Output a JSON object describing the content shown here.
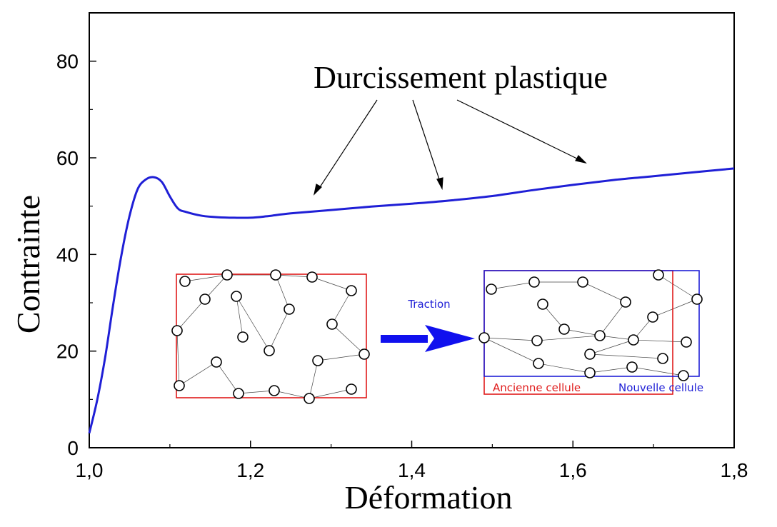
{
  "chart_data": {
    "type": "line",
    "xlabel": "Déformation",
    "ylabel": "Contrainte",
    "xlim": [
      1.0,
      1.8
    ],
    "ylim": [
      0,
      90
    ],
    "x_ticks": [
      "1,0",
      "1,2",
      "1,4",
      "1,6",
      "1,8"
    ],
    "x_tick_values": [
      1.0,
      1.2,
      1.4,
      1.6,
      1.8
    ],
    "y_ticks": [
      "0",
      "20",
      "40",
      "60",
      "80"
    ],
    "y_tick_values": [
      0,
      20,
      40,
      60,
      80
    ],
    "grid": false,
    "series": [
      {
        "color": "#1f1fd6",
        "x": [
          1.0,
          1.01,
          1.02,
          1.03,
          1.04,
          1.05,
          1.06,
          1.07,
          1.08,
          1.09,
          1.1,
          1.11,
          1.12,
          1.14,
          1.16,
          1.18,
          1.2,
          1.22,
          1.25,
          1.3,
          1.35,
          1.4,
          1.45,
          1.5,
          1.55,
          1.6,
          1.65,
          1.7,
          1.75,
          1.8
        ],
        "y": [
          3,
          10,
          19,
          30,
          40,
          48,
          53.5,
          55.5,
          56,
          55,
          52,
          49.5,
          48.8,
          48,
          47.7,
          47.6,
          47.6,
          47.9,
          48.5,
          49.2,
          49.9,
          50.5,
          51.2,
          52.1,
          53.3,
          54.4,
          55.4,
          56.2,
          57.0,
          57.8
        ]
      }
    ],
    "annotations": [
      {
        "text": "Durcissement plastique"
      }
    ]
  },
  "inset": {
    "traction_label": "Traction",
    "old_cell_label": "Ancienne cellule",
    "new_cell_label": "Nouvelle cellule",
    "old_color": "#e01b1b",
    "new_color": "#1f1fd6",
    "arrow_color": "#1010ee"
  }
}
